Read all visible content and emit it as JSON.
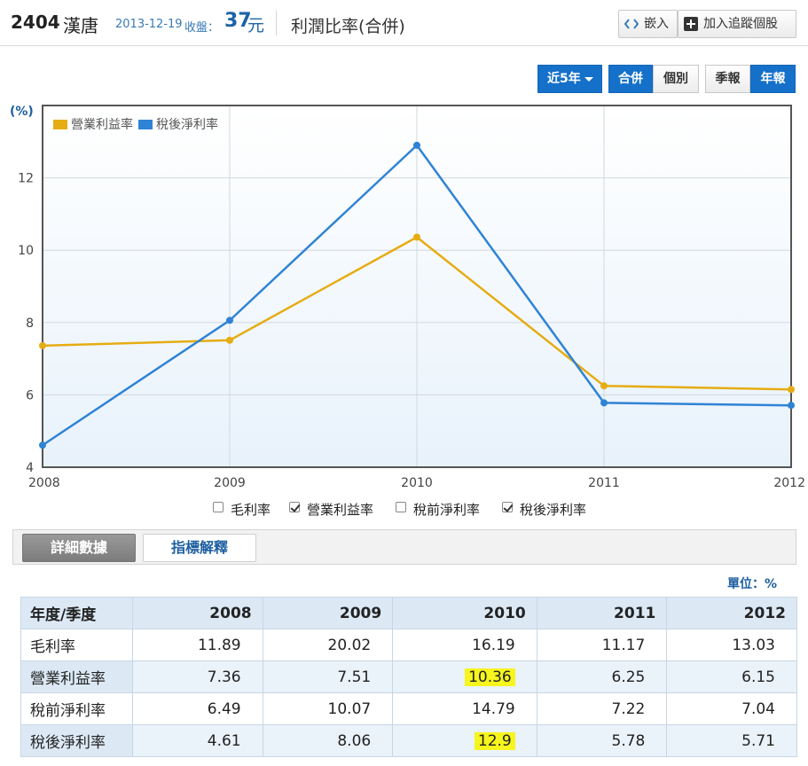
{
  "header": {
    "stock_code": "2404",
    "stock_name": "漢唐",
    "close_date": "2013-12-19",
    "close_label": "收盤：",
    "close_price": "37",
    "close_unit": "元",
    "page_title": "利潤比率(合併)",
    "embed_label": "嵌入",
    "track_label": "加入追蹤個股"
  },
  "controls": {
    "range_label": "近5年",
    "consolidated_label": "合併",
    "individual_label": "個別",
    "quarterly_label": "季報",
    "annual_label": "年報"
  },
  "chart_data": {
    "type": "line",
    "unit_label": "(%)",
    "x": [
      "2008",
      "2009",
      "2010",
      "2011",
      "2012"
    ],
    "ylim": [
      4,
      14
    ],
    "yticks": [
      "4",
      "6",
      "8",
      "10",
      "12"
    ],
    "grid": true,
    "legend_position": "top-left",
    "series": [
      {
        "name": "營業利益率",
        "color": "#e6ac13",
        "values": [
          7.36,
          7.51,
          10.36,
          6.25,
          6.15
        ]
      },
      {
        "name": "稅後淨利率",
        "color": "#2f83d4",
        "values": [
          4.61,
          8.06,
          12.9,
          5.78,
          5.71
        ]
      }
    ]
  },
  "series_checks": [
    {
      "label": "毛利率",
      "checked": false
    },
    {
      "label": "營業利益率",
      "checked": true
    },
    {
      "label": "稅前淨利率",
      "checked": false
    },
    {
      "label": "稅後淨利率",
      "checked": true
    }
  ],
  "tabs": {
    "detail": "詳細數據",
    "explain": "指標解釋"
  },
  "unit_note": "單位：%",
  "table": {
    "corner": "年度/季度",
    "years": [
      "2008",
      "2009",
      "2010",
      "2011",
      "2012"
    ],
    "rows": [
      {
        "label": "毛利率",
        "values": [
          "11.89",
          "20.02",
          "16.19",
          "11.17",
          "13.03"
        ]
      },
      {
        "label": "營業利益率",
        "values": [
          "7.36",
          "7.51",
          "10.36",
          "6.25",
          "6.15"
        ]
      },
      {
        "label": "稅前淨利率",
        "values": [
          "6.49",
          "10.07",
          "14.79",
          "7.22",
          "7.04"
        ]
      },
      {
        "label": "稅後淨利率",
        "values": [
          "4.61",
          "8.06",
          "12.9",
          "5.78",
          "5.71"
        ]
      }
    ]
  }
}
